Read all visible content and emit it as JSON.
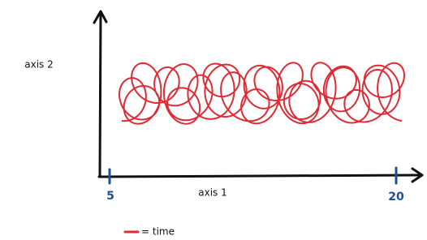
{
  "axes": {
    "y_label": "axis 2",
    "x_label": "axis 1",
    "x_ticks": [
      "5",
      "20"
    ]
  },
  "legend": {
    "label": "= time"
  }
}
